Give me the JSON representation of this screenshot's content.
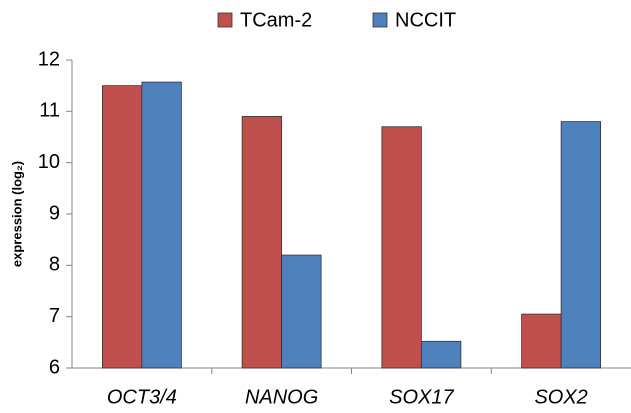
{
  "chart_data": {
    "type": "bar",
    "y_label": "expression (log₂)",
    "categories": [
      "OCT3/4",
      "NANOG",
      "SOX17",
      "SOX2"
    ],
    "series": [
      {
        "name": "TCam-2",
        "color": "#c0504d",
        "values": [
          11.5,
          10.9,
          10.7,
          7.05
        ]
      },
      {
        "name": "NCCIT",
        "color": "#4f81bd",
        "values": [
          11.57,
          8.2,
          6.52,
          10.8
        ]
      }
    ],
    "ylim": [
      6,
      12
    ],
    "yticks": [
      6,
      7,
      8,
      9,
      10,
      11,
      12
    ],
    "grid": false,
    "legend": "top"
  }
}
